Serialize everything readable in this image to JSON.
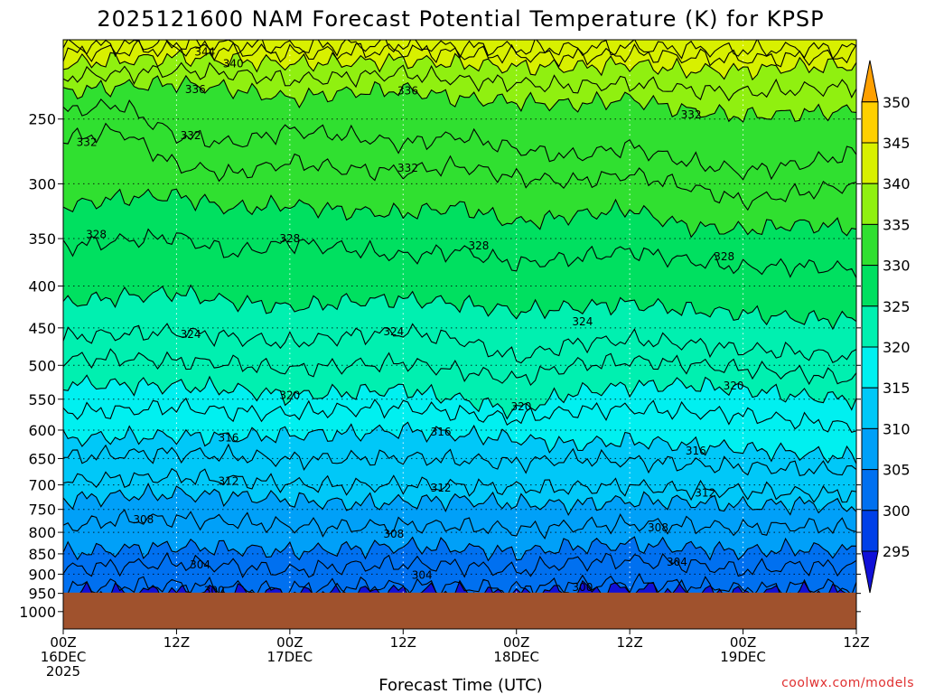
{
  "chart_data": {
    "type": "heatmap",
    "title": "2025121600 NAM Forecast Potential Temperature (K) for KPSP",
    "xlabel": "Forecast Time (UTC)",
    "ylabel": "",
    "credit": "coolwx.com/models",
    "y_scale": "log-pressure",
    "y_ticks": [
      250,
      300,
      350,
      400,
      450,
      500,
      550,
      600,
      650,
      700,
      750,
      800,
      850,
      900,
      950,
      1000
    ],
    "ylim": [
      200,
      1050
    ],
    "xlim": [
      0,
      84
    ],
    "x_unit": "hours from 2025-12-16 00Z",
    "x_ticks": [
      {
        "hour": 0,
        "lines": [
          "00Z",
          "16DEC",
          "2025"
        ]
      },
      {
        "hour": 12,
        "lines": [
          "12Z"
        ]
      },
      {
        "hour": 24,
        "lines": [
          "00Z",
          "17DEC"
        ]
      },
      {
        "hour": 36,
        "lines": [
          "12Z"
        ]
      },
      {
        "hour": 48,
        "lines": [
          "00Z",
          "18DEC"
        ]
      },
      {
        "hour": 60,
        "lines": [
          "12Z"
        ]
      },
      {
        "hour": 72,
        "lines": [
          "00Z",
          "19DEC"
        ]
      },
      {
        "hour": 84,
        "lines": [
          "12Z"
        ]
      }
    ],
    "grid": true,
    "surface_pressure": 948,
    "colorbar": {
      "levels": [
        295,
        300,
        305,
        310,
        315,
        320,
        325,
        330,
        335,
        340,
        345,
        350
      ],
      "colors": [
        "#1010d8",
        "#0040e8",
        "#0070f0",
        "#00a0f8",
        "#00c8f8",
        "#00f0f0",
        "#00f0b0",
        "#00e060",
        "#30e030",
        "#90f010",
        "#d8f000",
        "#ffd000",
        "#ffa000"
      ]
    },
    "series": [
      {
        "name": "300",
        "x": [
          0,
          6,
          12,
          18,
          24,
          30,
          36,
          42,
          48,
          54,
          60,
          66,
          72,
          78,
          84
        ],
        "y": [
          948,
          946,
          945,
          946,
          948,
          945,
          944,
          945,
          948,
          940,
          938,
          942,
          948,
          944,
          946
        ]
      },
      {
        "name": "302",
        "x": [
          0,
          6,
          12,
          18,
          24,
          30,
          36,
          42,
          48,
          54,
          60,
          66,
          72,
          78,
          84
        ],
        "y": [
          935,
          930,
          928,
          935,
          940,
          932,
          930,
          932,
          940,
          925,
          922,
          930,
          940,
          932,
          935
        ]
      },
      {
        "name": "304",
        "x": [
          0,
          6,
          12,
          18,
          24,
          30,
          36,
          42,
          48,
          54,
          60,
          66,
          72,
          78,
          84
        ],
        "y": [
          888,
          878,
          872,
          880,
          892,
          880,
          875,
          878,
          892,
          870,
          865,
          875,
          890,
          878,
          882
        ]
      },
      {
        "name": "306",
        "x": [
          0,
          6,
          12,
          18,
          24,
          30,
          36,
          42,
          48,
          54,
          60,
          66,
          72,
          78,
          84
        ],
        "y": [
          848,
          840,
          832,
          838,
          845,
          838,
          832,
          836,
          848,
          832,
          828,
          835,
          845,
          838,
          842
        ]
      },
      {
        "name": "308",
        "x": [
          0,
          6,
          12,
          18,
          24,
          30,
          36,
          42,
          48,
          54,
          60,
          66,
          72,
          78,
          84
        ],
        "y": [
          788,
          772,
          770,
          776,
          786,
          788,
          784,
          786,
          794,
          786,
          782,
          784,
          790,
          786,
          790
        ]
      },
      {
        "name": "310",
        "x": [
          0,
          6,
          12,
          18,
          24,
          30,
          36,
          42,
          48,
          54,
          60,
          66,
          72,
          78,
          84
        ],
        "y": [
          730,
          722,
          718,
          722,
          730,
          738,
          734,
          730,
          738,
          740,
          732,
          734,
          742,
          738,
          744
        ]
      },
      {
        "name": "312",
        "x": [
          0,
          6,
          12,
          18,
          24,
          30,
          36,
          42,
          48,
          54,
          60,
          66,
          72,
          78,
          84
        ],
        "y": [
          692,
          688,
          684,
          690,
          698,
          702,
          700,
          702,
          706,
          706,
          702,
          710,
          712,
          716,
          720
        ]
      },
      {
        "name": "314",
        "x": [
          0,
          6,
          12,
          18,
          24,
          30,
          36,
          42,
          48,
          54,
          60,
          66,
          72,
          78,
          84
        ],
        "y": [
          648,
          642,
          640,
          645,
          652,
          650,
          648,
          652,
          658,
          650,
          655,
          660,
          665,
          670,
          672
        ]
      },
      {
        "name": "316",
        "x": [
          0,
          6,
          12,
          18,
          24,
          30,
          36,
          42,
          48,
          54,
          60,
          66,
          72,
          78,
          84
        ],
        "y": [
          615,
          612,
          610,
          612,
          608,
          606,
          600,
          608,
          615,
          625,
          618,
          626,
          632,
          640,
          648
        ]
      },
      {
        "name": "318",
        "x": [
          0,
          6,
          12,
          18,
          24,
          30,
          36,
          42,
          48,
          54,
          60,
          66,
          72,
          78,
          84
        ],
        "y": [
          570,
          568,
          562,
          570,
          572,
          566,
          562,
          572,
          582,
          568,
          565,
          570,
          575,
          585,
          595
        ]
      },
      {
        "name": "320",
        "x": [
          0,
          6,
          12,
          18,
          24,
          30,
          36,
          42,
          48,
          54,
          60,
          66,
          72,
          78,
          84
        ],
        "y": [
          526,
          528,
          530,
          535,
          545,
          540,
          535,
          550,
          568,
          540,
          530,
          528,
          535,
          545,
          550
        ]
      },
      {
        "name": "322",
        "x": [
          0,
          6,
          12,
          18,
          24,
          30,
          36,
          42,
          48,
          54,
          60,
          66,
          72,
          78,
          84
        ],
        "y": [
          492,
          490,
          494,
          498,
          506,
          500,
          496,
          508,
          520,
          500,
          494,
          498,
          505,
          512,
          520
        ]
      },
      {
        "name": "324",
        "x": [
          0,
          6,
          12,
          18,
          24,
          30,
          36,
          42,
          48,
          54,
          60,
          66,
          72,
          78,
          84
        ],
        "y": [
          462,
          458,
          455,
          462,
          470,
          460,
          455,
          465,
          490,
          470,
          465,
          470,
          478,
          482,
          490
        ]
      },
      {
        "name": "326",
        "x": [
          0,
          6,
          12,
          18,
          24,
          30,
          36,
          42,
          48,
          54,
          60,
          66,
          72,
          78,
          84
        ],
        "y": [
          420,
          412,
          408,
          418,
          425,
          418,
          415,
          420,
          430,
          425,
          420,
          428,
          432,
          438,
          440
        ]
      },
      {
        "name": "328",
        "x": [
          0,
          6,
          12,
          18,
          24,
          30,
          36,
          42,
          48,
          54,
          60,
          66,
          72,
          78,
          84
        ],
        "y": [
          358,
          352,
          348,
          365,
          354,
          360,
          368,
          362,
          376,
          370,
          362,
          372,
          380,
          378,
          382
        ]
      },
      {
        "name": "330",
        "x": [
          0,
          6,
          12,
          18,
          24,
          30,
          36,
          42,
          48,
          54,
          60,
          66,
          72,
          78,
          84
        ],
        "y": [
          320,
          312,
          310,
          322,
          318,
          324,
          326,
          320,
          335,
          328,
          322,
          338,
          342,
          336,
          340
        ]
      },
      {
        "name": "332",
        "x": [
          0,
          6,
          12,
          18,
          24,
          30,
          36,
          42,
          48,
          54,
          60,
          66,
          72,
          78,
          84
        ],
        "y": [
          265,
          258,
          285,
          292,
          282,
          288,
          290,
          285,
          295,
          298,
          292,
          302,
          315,
          308,
          300
        ]
      },
      {
        "name": "334",
        "x": [
          0,
          6,
          12,
          18,
          24,
          30,
          36,
          42,
          48,
          54,
          60,
          66,
          72,
          78,
          84
        ],
        "y": [
          245,
          240,
          262,
          268,
          258,
          262,
          268,
          262,
          272,
          278,
          270,
          282,
          290,
          284,
          275
        ]
      },
      {
        "name": "336",
        "x": [
          0,
          6,
          12,
          18,
          24,
          30,
          36,
          42,
          48,
          54,
          60,
          66,
          72,
          78,
          84
        ],
        "y": [
          232,
          228,
          226,
          230,
          236,
          232,
          230,
          236,
          238,
          240,
          236,
          244,
          248,
          246,
          244
        ]
      },
      {
        "name": "338",
        "x": [
          0,
          6,
          12,
          18,
          24,
          30,
          36,
          42,
          48,
          54,
          60,
          66,
          72,
          78,
          84
        ],
        "y": [
          222,
          220,
          218,
          220,
          224,
          222,
          220,
          224,
          226,
          228,
          226,
          230,
          232,
          230,
          228
        ]
      },
      {
        "name": "340",
        "x": [
          0,
          6,
          12,
          18,
          24,
          30,
          36,
          42,
          48,
          54,
          60,
          66,
          72,
          78,
          84
        ],
        "y": [
          214,
          212,
          210,
          212,
          214,
          213,
          212,
          214,
          216,
          216,
          214,
          218,
          218,
          216,
          215
        ]
      },
      {
        "name": "342",
        "x": [
          0,
          6,
          12,
          18,
          24,
          30,
          36,
          42,
          48,
          54,
          60,
          66,
          72,
          78,
          84
        ],
        "y": [
          208,
          206,
          205,
          206,
          208,
          207,
          206,
          208,
          209,
          210,
          208,
          210,
          211,
          210,
          209
        ]
      },
      {
        "name": "344",
        "x": [
          0,
          6,
          12,
          18,
          24,
          30,
          36,
          42,
          48,
          54,
          60,
          66,
          72,
          78,
          84
        ],
        "y": [
          204,
          203,
          202,
          203,
          204,
          203,
          203,
          204,
          205,
          205,
          204,
          205,
          206,
          205,
          205
        ]
      }
    ],
    "contour_labels": [
      {
        "text": "344",
        "x": 15,
        "y": 207
      },
      {
        "text": "340",
        "x": 18,
        "y": 214
      },
      {
        "text": "336",
        "x": 14,
        "y": 230
      },
      {
        "text": "336",
        "x": 36.5,
        "y": 231
      },
      {
        "text": "332",
        "x": 2.5,
        "y": 267
      },
      {
        "text": "332",
        "x": 13.5,
        "y": 262
      },
      {
        "text": "332",
        "x": 36.5,
        "y": 287
      },
      {
        "text": "332",
        "x": 66.5,
        "y": 247
      },
      {
        "text": "328",
        "x": 3.5,
        "y": 346
      },
      {
        "text": "328",
        "x": 24,
        "y": 350
      },
      {
        "text": "328",
        "x": 44,
        "y": 357
      },
      {
        "text": "328",
        "x": 70,
        "y": 368
      },
      {
        "text": "324",
        "x": 13.5,
        "y": 458
      },
      {
        "text": "324",
        "x": 35,
        "y": 455
      },
      {
        "text": "324",
        "x": 55,
        "y": 442
      },
      {
        "text": "320",
        "x": 24,
        "y": 544
      },
      {
        "text": "320",
        "x": 48.5,
        "y": 562
      },
      {
        "text": "320",
        "x": 71,
        "y": 530
      },
      {
        "text": "316",
        "x": 17.5,
        "y": 613
      },
      {
        "text": "316",
        "x": 40,
        "y": 603
      },
      {
        "text": "316",
        "x": 67,
        "y": 636
      },
      {
        "text": "312",
        "x": 17.5,
        "y": 693
      },
      {
        "text": "312",
        "x": 40,
        "y": 706
      },
      {
        "text": "312",
        "x": 68,
        "y": 716
      },
      {
        "text": "308",
        "x": 8.5,
        "y": 772
      },
      {
        "text": "308",
        "x": 35,
        "y": 804
      },
      {
        "text": "308",
        "x": 63,
        "y": 790
      },
      {
        "text": "304",
        "x": 14.5,
        "y": 877
      },
      {
        "text": "304",
        "x": 38,
        "y": 902
      },
      {
        "text": "304",
        "x": 65,
        "y": 870
      },
      {
        "text": "300",
        "x": 16,
        "y": 943
      },
      {
        "text": "300",
        "x": 55,
        "y": 934
      }
    ]
  }
}
